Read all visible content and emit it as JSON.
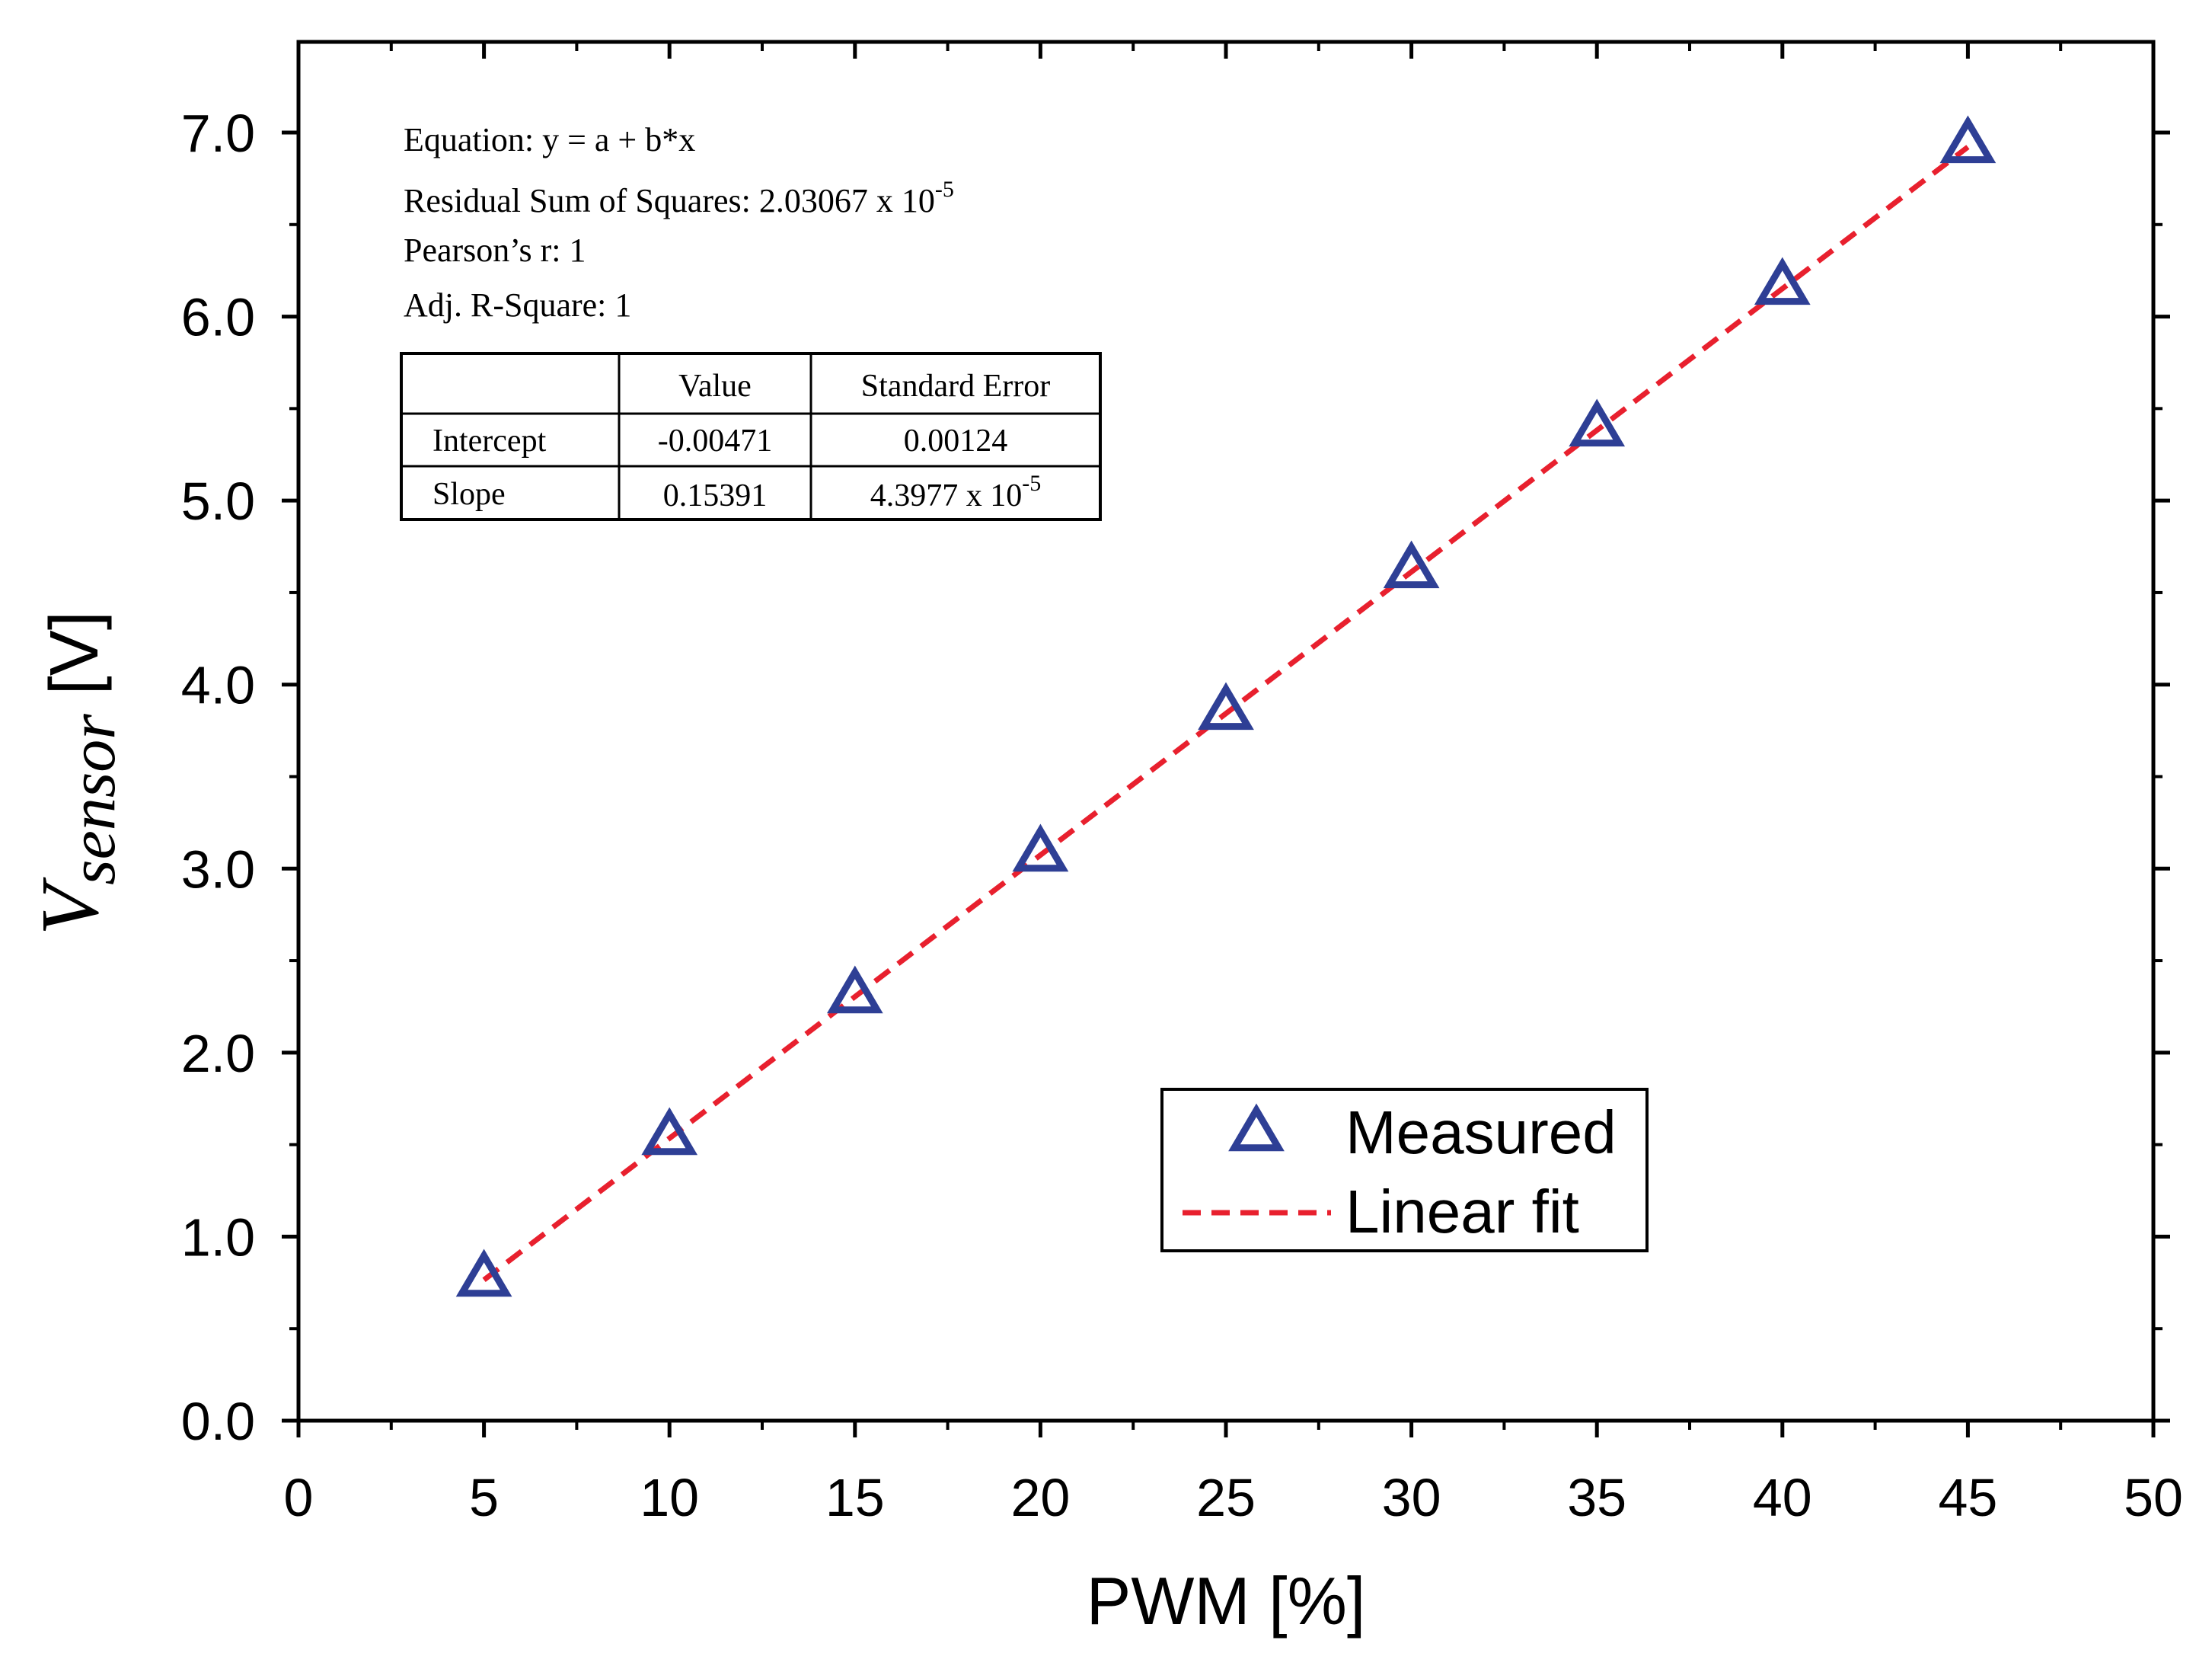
{
  "chart_data": {
    "type": "scatter",
    "xlabel": "PWM [%]",
    "ylabel": {
      "main": "V",
      "sub": "sensor",
      "unit": " [V]"
    },
    "xlim": [
      0,
      50
    ],
    "ylim": [
      0,
      7
    ],
    "x_ticks": [
      "0",
      "5",
      "10",
      "15",
      "20",
      "25",
      "30",
      "35",
      "40",
      "45",
      "50"
    ],
    "y_ticks": [
      "0.0",
      "1.0",
      "2.0",
      "3.0",
      "4.0",
      "5.0",
      "6.0",
      "7.0"
    ],
    "series": [
      {
        "name": "Measured",
        "marker": "triangle-open",
        "color": "#2e3f95",
        "x": [
          5,
          10,
          15,
          20,
          25,
          30,
          35,
          40,
          45
        ],
        "y": [
          0.77,
          1.54,
          2.31,
          3.08,
          3.85,
          4.62,
          5.39,
          6.16,
          6.93
        ]
      },
      {
        "name": "Linear fit",
        "style": "dashed-line",
        "color": "#e8202e",
        "intercept": -0.00471,
        "slope": 0.15391,
        "x_range": [
          5,
          45
        ]
      }
    ],
    "legend": {
      "position": "bottom-right"
    },
    "fit_stats": {
      "equation": "Equation: y = a + b*x",
      "rss_prefix": "Residual Sum of Squares: 2.03067 x 10",
      "rss_exp": "-5",
      "pearson": "Pearson’s r: 1",
      "adj_r2": "Adj. R-Square: 1",
      "table": {
        "headers": [
          "",
          "Value",
          "Standard Error"
        ],
        "rows": [
          {
            "label": "Intercept",
            "value": "-0.00471",
            "error": "0.00124",
            "error_exp": ""
          },
          {
            "label": "Slope",
            "value": "0.15391",
            "error": "4.3977 x 10",
            "error_exp": "-5"
          }
        ]
      }
    }
  }
}
